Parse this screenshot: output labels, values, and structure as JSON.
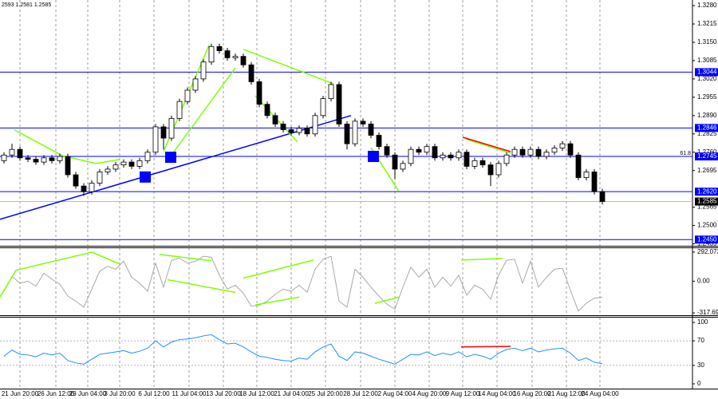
{
  "chart_data": [
    {
      "type": "candlestick",
      "header": "2593 1.2581 1.2585",
      "xlim": [
        -0.5,
        86.3
      ],
      "xticks": [
        {
          "value": 2.0,
          "label": "21 Jun 20:00"
        },
        {
          "value": 6.5,
          "label": "26 Jun 12:00"
        },
        {
          "value": 10.5,
          "label": "29 Jun 04:00"
        },
        {
          "value": 14.5,
          "label": "3 Jul 20:00"
        },
        {
          "value": 18.8,
          "label": "6 Jul 12:00"
        },
        {
          "value": 23.2,
          "label": "11 Jul 04:00"
        },
        {
          "value": 27.5,
          "label": "13 Jul 20:00"
        },
        {
          "value": 31.7,
          "label": "18 Jul 12:00"
        },
        {
          "value": 36.0,
          "label": "21 Jul 04:00"
        },
        {
          "value": 40.3,
          "label": "25 Jul 20:00"
        },
        {
          "value": 44.7,
          "label": "28 Jul 12:00"
        },
        {
          "value": 49.0,
          "label": "2 Aug 04:00"
        },
        {
          "value": 53.3,
          "label": "4 Aug 20:00"
        },
        {
          "value": 57.5,
          "label": "9 Aug 12:00"
        },
        {
          "value": 61.8,
          "label": "14 Aug 04:00"
        },
        {
          "value": 66.2,
          "label": "16 Aug 20:00"
        },
        {
          "value": 70.5,
          "label": "21 Aug 12:00"
        },
        {
          "value": 74.7,
          "label": "24 Aug 04:00"
        }
      ],
      "ylim": [
        1.2428,
        1.33
      ],
      "yticks": [
        {
          "value": 1.328,
          "label": "1.3280"
        },
        {
          "value": 1.3215,
          "label": "1.3215"
        },
        {
          "value": 1.315,
          "label": "1.3150"
        },
        {
          "value": 1.3085,
          "label": "1.3085"
        },
        {
          "value": 1.302,
          "label": "1.3020"
        },
        {
          "value": 1.2955,
          "label": "1.2955"
        },
        {
          "value": 1.289,
          "label": "1.2890"
        },
        {
          "value": 1.2825,
          "label": "1.2825"
        },
        {
          "value": 1.276,
          "label": "1.2760"
        },
        {
          "value": 1.2695,
          "label": "1.2695"
        },
        {
          "value": 1.2565,
          "label": "1.2565"
        },
        {
          "value": 1.25,
          "label": "1.2500"
        },
        {
          "value": 1.2435,
          "label": "1.2435"
        }
      ],
      "open": [
        1.273,
        1.275,
        1.277,
        1.274,
        1.2735,
        1.2725,
        1.274,
        1.273,
        1.2745,
        1.268,
        1.264,
        1.262,
        1.265,
        1.269,
        1.27,
        1.2715,
        1.2725,
        1.271,
        1.273,
        1.276,
        1.285,
        1.281,
        1.288,
        1.294,
        1.298,
        1.302,
        1.308,
        1.3135,
        1.312,
        1.3095,
        1.31,
        1.307,
        1.301,
        1.293,
        1.289,
        1.286,
        1.284,
        1.283,
        1.2845,
        1.2825,
        1.289,
        1.295,
        1.3,
        1.286,
        1.279,
        1.287,
        1.286,
        1.282,
        1.278,
        1.275,
        1.27,
        1.272,
        1.277,
        1.276,
        1.278,
        1.274,
        1.275,
        1.274,
        1.276,
        1.271,
        1.273,
        1.2715,
        1.268,
        1.272,
        1.275,
        1.277,
        1.275,
        1.277,
        1.2745,
        1.276,
        1.2775,
        1.279,
        1.275,
        1.267,
        1.269,
        1.262
      ],
      "high": [
        1.276,
        1.279,
        1.278,
        1.275,
        1.2745,
        1.275,
        1.275,
        1.2755,
        1.2755,
        1.269,
        1.265,
        1.266,
        1.27,
        1.271,
        1.2725,
        1.2735,
        1.2735,
        1.274,
        1.277,
        1.286,
        1.286,
        1.289,
        1.295,
        1.299,
        1.303,
        1.309,
        1.3145,
        1.3145,
        1.313,
        1.311,
        1.311,
        1.308,
        1.302,
        1.294,
        1.29,
        1.287,
        1.285,
        1.2855,
        1.2855,
        1.29,
        1.296,
        1.301,
        1.301,
        1.287,
        1.288,
        1.288,
        1.287,
        1.283,
        1.279,
        1.276,
        1.273,
        1.278,
        1.278,
        1.279,
        1.279,
        1.276,
        1.276,
        1.277,
        1.277,
        1.274,
        1.274,
        1.2725,
        1.273,
        1.276,
        1.278,
        1.278,
        1.278,
        1.278,
        1.277,
        1.2785,
        1.28,
        1.28,
        1.276,
        1.27,
        1.27,
        1.263
      ],
      "low": [
        1.272,
        1.274,
        1.273,
        1.2725,
        1.2715,
        1.2715,
        1.272,
        1.272,
        1.267,
        1.263,
        1.2605,
        1.261,
        1.264,
        1.268,
        1.269,
        1.2705,
        1.27,
        1.27,
        1.272,
        1.275,
        1.277,
        1.28,
        1.287,
        1.293,
        1.297,
        1.301,
        1.307,
        1.311,
        1.3085,
        1.3085,
        1.306,
        1.3,
        1.292,
        1.288,
        1.285,
        1.283,
        1.282,
        1.282,
        1.2815,
        1.2815,
        1.288,
        1.294,
        1.285,
        1.277,
        1.278,
        1.285,
        1.281,
        1.277,
        1.274,
        1.2665,
        1.269,
        1.271,
        1.275,
        1.275,
        1.273,
        1.273,
        1.273,
        1.273,
        1.27,
        1.27,
        1.2705,
        1.264,
        1.267,
        1.271,
        1.274,
        1.274,
        1.274,
        1.2735,
        1.2735,
        1.275,
        1.2765,
        1.274,
        1.266,
        1.266,
        1.261,
        1.2575
      ],
      "close": [
        1.275,
        1.277,
        1.274,
        1.2735,
        1.2725,
        1.274,
        1.273,
        1.2745,
        1.268,
        1.264,
        1.262,
        1.265,
        1.269,
        1.27,
        1.2715,
        1.2725,
        1.271,
        1.273,
        1.276,
        1.285,
        1.281,
        1.288,
        1.294,
        1.298,
        1.302,
        1.308,
        1.3135,
        1.312,
        1.3095,
        1.31,
        1.307,
        1.301,
        1.293,
        1.289,
        1.286,
        1.284,
        1.283,
        1.2845,
        1.2825,
        1.289,
        1.295,
        1.3,
        1.286,
        1.279,
        1.287,
        1.286,
        1.282,
        1.278,
        1.275,
        1.27,
        1.272,
        1.277,
        1.276,
        1.278,
        1.274,
        1.275,
        1.274,
        1.276,
        1.271,
        1.273,
        1.2715,
        1.268,
        1.272,
        1.275,
        1.277,
        1.275,
        1.277,
        1.2745,
        1.276,
        1.2775,
        1.279,
        1.275,
        1.267,
        1.269,
        1.262,
        1.2585
      ],
      "up_color": "#ffffff",
      "down_color": "#000000",
      "level_color": "#0000ff",
      "levels": [
        {
          "value": 1.3044,
          "label": "1.3044"
        },
        {
          "value": 1.2846,
          "label": "1.2846"
        },
        {
          "value": 1.2745,
          "label": "1.2745",
          "note": "61.8"
        },
        {
          "value": 1.262,
          "label": "1.2620"
        },
        {
          "value": 1.245,
          "label": "1.2450"
        }
      ],
      "current": {
        "value": 1.2585,
        "label": "1.2585"
      },
      "annotations": [
        {
          "color": "#0000ff",
          "points": [
            [
              -0.5,
              1.2522
            ],
            [
              43.5,
              1.289
            ]
          ]
        },
        {
          "color": "#80ff00",
          "points": [
            [
              1.3,
              1.2839
            ],
            [
              7.3,
              1.2748
            ],
            [
              11.5,
              1.272
            ],
            [
              14.5,
              1.2734
            ]
          ]
        },
        {
          "color": "#80ff00",
          "points": [
            [
              20.0,
              1.2762
            ],
            [
              25.7,
              1.3139
            ]
          ]
        },
        {
          "color": "#80ff00",
          "points": [
            [
              21.3,
              1.2762
            ],
            [
              29.0,
              1.3059
            ]
          ]
        },
        {
          "color": "#80ff00",
          "points": [
            [
              30.0,
              1.3125
            ],
            [
              41.3,
              1.3003
            ]
          ]
        },
        {
          "color": "#80ff00",
          "points": [
            [
              31.5,
              1.296
            ],
            [
              36.8,
              1.2796
            ]
          ]
        },
        {
          "color": "#80ff00",
          "points": [
            [
              46.0,
              1.2776
            ],
            [
              49.5,
              1.2621
            ]
          ]
        },
        {
          "color": "#80ff00",
          "points": [
            [
              58.0,
              1.2805
            ],
            [
              63.5,
              1.2757
            ]
          ]
        },
        {
          "color": "#ff0000",
          "points": [
            [
              57.5,
              1.2813
            ],
            [
              63.5,
              1.2762
            ]
          ]
        }
      ],
      "markers": {
        "color": "#0000ff",
        "points": [
          [
            20.9,
            1.2742
          ],
          [
            17.7,
            1.2672
          ],
          [
            46.3,
            1.2745
          ]
        ]
      }
    },
    {
      "type": "line",
      "color": "#a9a9a9",
      "ylim": [
        -341,
        331
      ],
      "yticks": [
        292.0732,
        {
          "value": 0,
          "label": "0.00"
        },
        -317.693
      ],
      "values": [
        -100,
        50,
        -20,
        0,
        -50,
        80,
        20,
        -30,
        -150,
        -200,
        -260,
        -80,
        100,
        150,
        120,
        200,
        40,
        -20,
        -100,
        180,
        -60,
        210,
        230,
        180,
        200,
        250,
        240,
        60,
        -80,
        -40,
        -120,
        -250,
        -240,
        -200,
        -130,
        -80,
        -100,
        -40,
        -110,
        120,
        220,
        250,
        -200,
        -260,
        120,
        40,
        -60,
        -150,
        -230,
        -280,
        -60,
        140,
        40,
        120,
        -60,
        40,
        -50,
        60,
        -140,
        -40,
        -80,
        -180,
        60,
        210,
        220,
        -20,
        200,
        -60,
        40,
        120,
        130,
        -90,
        -300,
        -220,
        -170,
        -160
      ],
      "annotations": [
        {
          "color": "#80ff00",
          "points": [
            [
              -0.5,
              -159
            ],
            [
              1.5,
              110
            ],
            [
              11,
              291
            ],
            [
              14.5,
              173
            ]
          ]
        },
        {
          "color": "#80ff00",
          "points": [
            [
              19.5,
              268
            ],
            [
              26,
              205
            ]
          ]
        },
        {
          "color": "#80ff00",
          "points": [
            [
              20.5,
              15
            ],
            [
              29,
              -112
            ]
          ]
        },
        {
          "color": "#80ff00",
          "points": [
            [
              30,
              31
            ],
            [
              38.8,
              212
            ]
          ]
        },
        {
          "color": "#80ff00",
          "points": [
            [
              31.5,
              -238
            ],
            [
              37,
              -159
            ]
          ]
        },
        {
          "color": "#80ff00",
          "points": [
            [
              46.5,
              -222
            ],
            [
              49.5,
              -159
            ]
          ]
        },
        {
          "color": "#80ff00",
          "points": [
            [
              57.3,
              212
            ],
            [
              62.5,
              228
            ]
          ]
        }
      ]
    },
    {
      "type": "line",
      "color": "#1e90ff",
      "ylim": [
        -7.8,
        107.8
      ],
      "yticks": [
        100,
        70,
        30,
        0
      ],
      "levels": [
        70,
        30
      ],
      "values": [
        45,
        55,
        48,
        47,
        44,
        50,
        47,
        50,
        38,
        34,
        32,
        40,
        48,
        50,
        52,
        54,
        50,
        53,
        58,
        70,
        60,
        68,
        72,
        73,
        75,
        78,
        80,
        72,
        65,
        66,
        60,
        52,
        45,
        43,
        40,
        38,
        37,
        42,
        40,
        52,
        60,
        65,
        45,
        38,
        52,
        50,
        45,
        40,
        36,
        32,
        40,
        48,
        47,
        52,
        46,
        50,
        47,
        52,
        44,
        48,
        45,
        40,
        50,
        56,
        58,
        54,
        58,
        52,
        55,
        57,
        58,
        50,
        38,
        42,
        35,
        33
      ],
      "annotations": [
        {
          "color": "#ff0000",
          "points": [
            [
              57.3,
              60
            ],
            [
              63.5,
              61
            ]
          ]
        }
      ]
    }
  ]
}
